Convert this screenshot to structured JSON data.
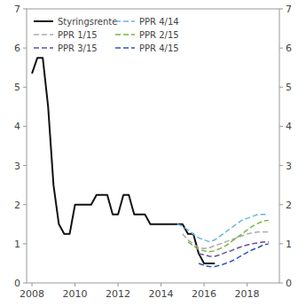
{
  "chart_data": {
    "type": "line",
    "xlim": [
      2007.75,
      2019.5
    ],
    "xticks": [
      2008,
      2010,
      2012,
      2014,
      2016,
      2018
    ],
    "ylim": [
      0,
      7
    ],
    "yticks": [
      0,
      1,
      2,
      3,
      4,
      5,
      6,
      7
    ],
    "y2lim": [
      0,
      7
    ],
    "y2ticks": [
      0,
      1,
      2,
      3,
      4,
      5,
      6,
      7
    ],
    "grid": false,
    "legend": "upper left",
    "series": [
      {
        "name": "Styringsrente",
        "color": "#111111",
        "line_style": "solid",
        "x": [
          2008.0,
          2008.25,
          2008.5,
          2008.75,
          2009.0,
          2009.25,
          2009.5,
          2009.75,
          2010.0,
          2010.25,
          2010.5,
          2010.75,
          2011.0,
          2011.25,
          2011.5,
          2011.75,
          2012.0,
          2012.25,
          2012.5,
          2012.75,
          2013.0,
          2013.25,
          2013.5,
          2013.75,
          2014.0,
          2014.25,
          2014.5,
          2014.75,
          2015.0,
          2015.25,
          2015.5,
          2015.75,
          2016.0,
          2016.25,
          2016.5
        ],
        "values": [
          5.35,
          5.75,
          5.75,
          4.5,
          2.5,
          1.5,
          1.25,
          1.25,
          2.0,
          2.0,
          2.0,
          2.0,
          2.25,
          2.25,
          2.25,
          1.75,
          1.75,
          2.25,
          2.25,
          1.75,
          1.75,
          1.75,
          1.5,
          1.5,
          1.5,
          1.5,
          1.5,
          1.5,
          1.5,
          1.25,
          1.25,
          0.75,
          0.5,
          0.5,
          0.5
        ]
      },
      {
        "name": "PPR 4/14",
        "color": "#6ab4e8",
        "line_style": "dashed",
        "x": [
          2014.75,
          2015.0,
          2015.25,
          2015.5,
          2015.75,
          2016.0,
          2016.25,
          2016.5,
          2016.75,
          2017.0,
          2017.25,
          2017.5,
          2017.75,
          2018.0,
          2018.25,
          2018.5,
          2018.75,
          2019.0
        ],
        "values": [
          1.5,
          1.45,
          1.35,
          1.25,
          1.15,
          1.1,
          1.05,
          1.1,
          1.2,
          1.3,
          1.4,
          1.5,
          1.6,
          1.65,
          1.7,
          1.75,
          1.75,
          1.75
        ]
      },
      {
        "name": "PPR 1/15",
        "color": "#aaaaaa",
        "line_style": "dashed",
        "x": [
          2015.0,
          2015.25,
          2015.5,
          2015.75,
          2016.0,
          2016.25,
          2016.5,
          2016.75,
          2017.0,
          2017.25,
          2017.5,
          2017.75,
          2018.0,
          2018.25,
          2018.5,
          2018.75,
          2019.0
        ],
        "values": [
          1.25,
          1.1,
          1.0,
          0.9,
          0.88,
          0.9,
          0.95,
          1.0,
          1.05,
          1.1,
          1.15,
          1.2,
          1.25,
          1.28,
          1.3,
          1.3,
          1.3
        ]
      },
      {
        "name": "PPR 2/15",
        "color": "#7ab540",
        "line_style": "dashed",
        "x": [
          2015.25,
          2015.5,
          2015.75,
          2016.0,
          2016.25,
          2016.5,
          2016.75,
          2017.0,
          2017.25,
          2017.5,
          2017.75,
          2018.0,
          2018.25,
          2018.5,
          2018.75,
          2019.0
        ],
        "values": [
          1.05,
          0.95,
          0.85,
          0.82,
          0.8,
          0.82,
          0.88,
          0.95,
          1.05,
          1.15,
          1.25,
          1.35,
          1.45,
          1.52,
          1.58,
          1.6
        ]
      },
      {
        "name": "PPR 3/15",
        "color": "#6b4fa0",
        "line_style": "dashed",
        "x": [
          2015.75,
          2016.0,
          2016.25,
          2016.5,
          2016.75,
          2017.0,
          2017.25,
          2017.5,
          2017.75,
          2018.0,
          2018.25,
          2018.5,
          2018.75,
          2019.0
        ],
        "values": [
          0.75,
          0.72,
          0.68,
          0.68,
          0.72,
          0.78,
          0.82,
          0.88,
          0.93,
          0.97,
          1.0,
          1.02,
          1.05,
          1.05
        ]
      },
      {
        "name": "PPR 4/15",
        "color": "#3355bb",
        "line_style": "dashed",
        "x": [
          2015.75,
          2016.0,
          2016.25,
          2016.5,
          2016.75,
          2017.0,
          2017.25,
          2017.5,
          2017.75,
          2018.0,
          2018.25,
          2018.5,
          2018.75,
          2019.0
        ],
        "values": [
          0.5,
          0.45,
          0.42,
          0.42,
          0.45,
          0.5,
          0.55,
          0.62,
          0.7,
          0.78,
          0.85,
          0.9,
          0.97,
          1.0
        ]
      }
    ]
  }
}
